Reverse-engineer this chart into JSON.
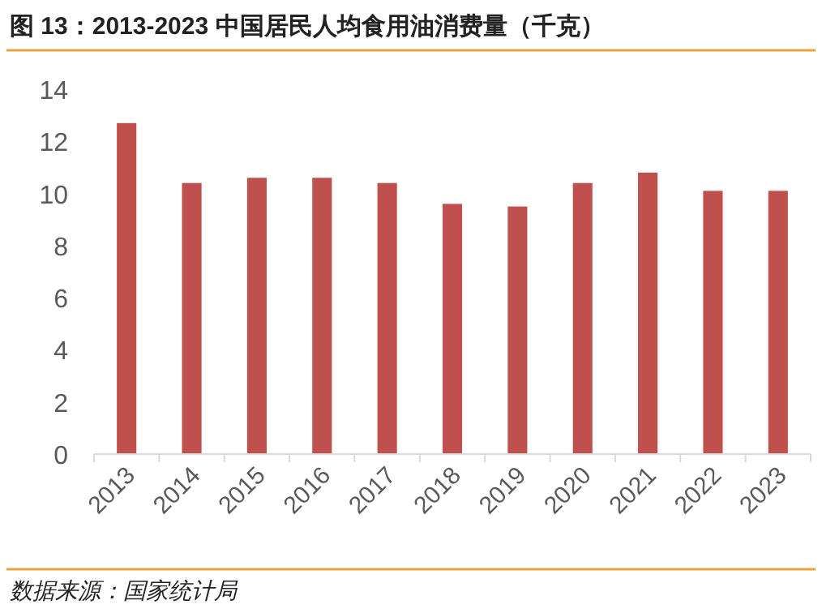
{
  "chart_data": {
    "type": "bar",
    "title": "图 13：2013-2023 中国居民人均食用油消费量（千克）",
    "categories": [
      "2013",
      "2014",
      "2015",
      "2016",
      "2017",
      "2018",
      "2019",
      "2020",
      "2021",
      "2022",
      "2023"
    ],
    "values": [
      12.7,
      10.4,
      10.6,
      10.6,
      10.4,
      9.6,
      9.5,
      10.4,
      10.8,
      10.1,
      10.1
    ],
    "color": "#c0504d",
    "ylim": [
      0,
      14
    ],
    "yticks": [
      0,
      2,
      4,
      6,
      8,
      10,
      12,
      14
    ],
    "annotations": [
      "数据来源：国家统计局"
    ]
  }
}
